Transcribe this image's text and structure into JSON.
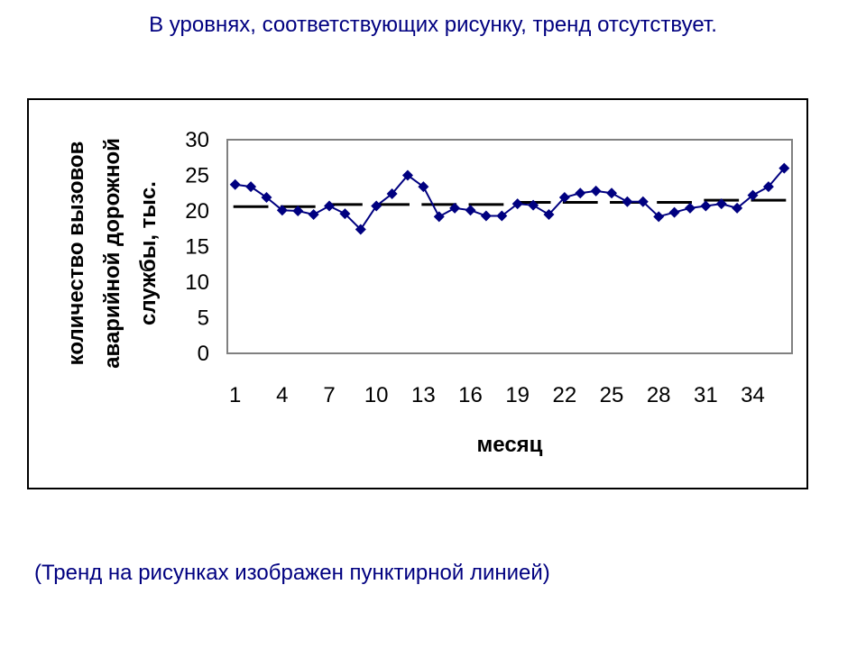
{
  "slide": {
    "title": "В уровнях, соответствующих рисунку,  тренд отсутствует.",
    "footnote": "(Тренд на рисунках изображен пунктирной линией)"
  },
  "chart_data": {
    "type": "line",
    "xlabel": "месяц",
    "ylabel_lines": [
      "количество вызовов",
      "аварийной дорожной",
      "службы, тыс."
    ],
    "x_tick_labels": [
      "1",
      "4",
      "7",
      "10",
      "13",
      "16",
      "19",
      "22",
      "25",
      "28",
      "31",
      "34"
    ],
    "ylim": [
      0,
      30
    ],
    "y_ticks": [
      0,
      5,
      10,
      15,
      20,
      25,
      30
    ],
    "grid": false,
    "legend": "none",
    "x": [
      1,
      2,
      3,
      4,
      5,
      6,
      7,
      8,
      9,
      10,
      11,
      12,
      13,
      14,
      15,
      16,
      17,
      18,
      19,
      20,
      21,
      22,
      23,
      24,
      25,
      26,
      27,
      28,
      29,
      30,
      31,
      32,
      33,
      34,
      35,
      36
    ],
    "series": [
      {
        "type": "line",
        "marker": "diamond",
        "color": "#000080",
        "values": [
          23.7,
          23.4,
          21.9,
          20.1,
          20.0,
          19.5,
          20.7,
          19.6,
          17.4,
          20.7,
          22.4,
          25.0,
          23.4,
          19.2,
          20.4,
          20.1,
          19.3,
          19.3,
          21.0,
          20.8,
          19.5,
          21.9,
          22.5,
          22.8,
          22.5,
          21.3,
          21.3,
          19.2,
          19.8,
          20.4,
          20.7,
          21.0,
          20.4,
          22.2,
          23.4,
          26.0
        ]
      },
      {
        "type": "dashed",
        "color": "#000000",
        "segments": [
          {
            "x": [
              1,
              3
            ],
            "value": 20.6
          },
          {
            "x": [
              4,
              6
            ],
            "value": 20.6
          },
          {
            "x": [
              7,
              9
            ],
            "value": 20.9
          },
          {
            "x": [
              10,
              12
            ],
            "value": 20.9
          },
          {
            "x": [
              13,
              15
            ],
            "value": 20.9
          },
          {
            "x": [
              16,
              18
            ],
            "value": 20.9
          },
          {
            "x": [
              19,
              21
            ],
            "value": 21.2
          },
          {
            "x": [
              22,
              24
            ],
            "value": 21.2
          },
          {
            "x": [
              25,
              27
            ],
            "value": 21.2
          },
          {
            "x": [
              28,
              30
            ],
            "value": 21.2
          },
          {
            "x": [
              31,
              33
            ],
            "value": 21.5
          },
          {
            "x": [
              34,
              36
            ],
            "value": 21.5
          }
        ]
      }
    ]
  }
}
